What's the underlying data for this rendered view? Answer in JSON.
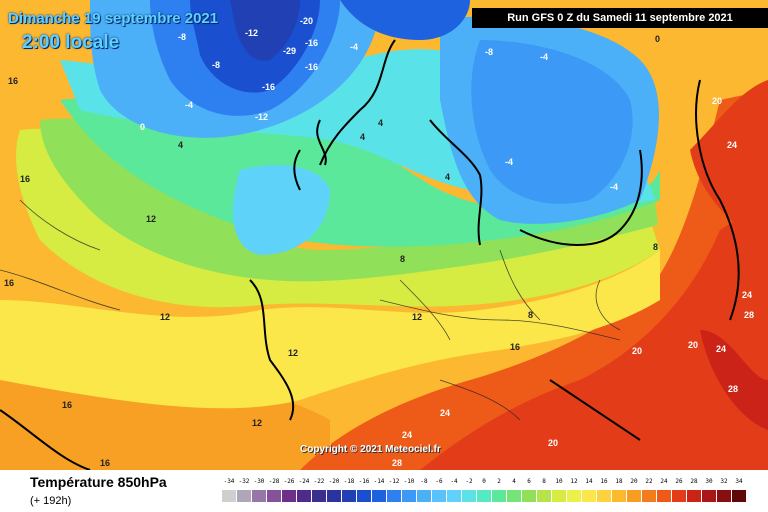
{
  "header": {
    "date_label": "Dimanche 19 septembre 2021",
    "time_label": "2:00 locale",
    "run_label": "Run GFS 0 Z du Samedi 11 septembre 2021"
  },
  "map": {
    "copyright": "Copyright © 2021 Meteociel.fr",
    "contour_labels": [
      "-8",
      "-12",
      "-16",
      "-20",
      "-29",
      "-4",
      "0",
      "4",
      "8",
      "12",
      "16",
      "20",
      "24",
      "28"
    ]
  },
  "footer": {
    "variable_title": "Température 850hPa",
    "lead_time": "(+ 192h)"
  },
  "legend": {
    "values": [
      -34,
      -32,
      -30,
      -28,
      -26,
      -24,
      -22,
      -20,
      -18,
      -16,
      -14,
      -12,
      -10,
      -8,
      -6,
      -4,
      -2,
      0,
      2,
      4,
      6,
      8,
      10,
      12,
      14,
      16,
      18,
      20,
      22,
      24,
      26,
      28,
      30,
      32,
      34
    ],
    "colors": [
      "#cfcfcf",
      "#b0a6b8",
      "#9678a8",
      "#85529a",
      "#6d2f88",
      "#4e2b8a",
      "#3a2f8f",
      "#2a33a0",
      "#2140b4",
      "#1a4fd0",
      "#1f62e0",
      "#2e80f0",
      "#3c99f5",
      "#4cb0f8",
      "#58c2fa",
      "#5fd2fa",
      "#59e3e8",
      "#54ebc0",
      "#5be89a",
      "#74e476",
      "#91e05a",
      "#b3e44a",
      "#d6ec42",
      "#eef04a",
      "#fbe74a",
      "#fdd23c",
      "#fbba2c",
      "#f89c22",
      "#f47c1a",
      "#ee5a18",
      "#e33c18",
      "#cc2318",
      "#ac1616",
      "#8a0e10",
      "#600708"
    ]
  }
}
